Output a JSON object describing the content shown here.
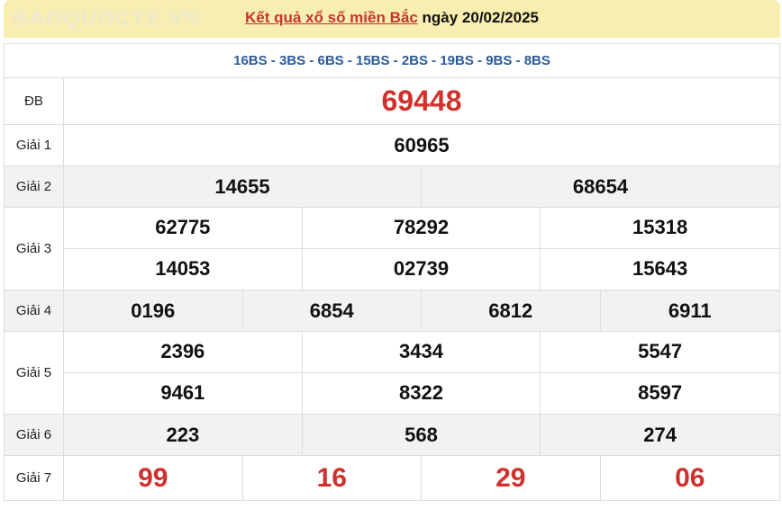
{
  "header": {
    "link": "Kết quả xổ số miền Bắc",
    "date_text": " ngày 20/02/2025"
  },
  "codes": "16BS - 3BS - 6BS - 15BS - 2BS - 19BS - 9BS - 8BS",
  "prizes": [
    {
      "label": "ĐB",
      "numbers": [
        "69448"
      ]
    },
    {
      "label": "Giải 1",
      "numbers": [
        "60965"
      ]
    },
    {
      "label": "Giải 2",
      "numbers": [
        "14655",
        "68654"
      ]
    },
    {
      "label": "Giải 3",
      "numbers": [
        "62775",
        "78292",
        "15318",
        "14053",
        "02739",
        "15643"
      ]
    },
    {
      "label": "Giải 4",
      "numbers": [
        "0196",
        "6854",
        "6812",
        "6911"
      ]
    },
    {
      "label": "Giải 5",
      "numbers": [
        "2396",
        "3434",
        "5547",
        "9461",
        "8322",
        "8597"
      ]
    },
    {
      "label": "Giải 6",
      "numbers": [
        "223",
        "568",
        "274"
      ]
    },
    {
      "label": "Giải 7",
      "numbers": [
        "99",
        "16",
        "29",
        "06"
      ]
    }
  ],
  "watermark": "BAOQUOCTE.VN",
  "colors": {
    "header_bg": "#f8eeb0",
    "accent_red": "#d0312d",
    "code_blue": "#2b5a9a"
  }
}
